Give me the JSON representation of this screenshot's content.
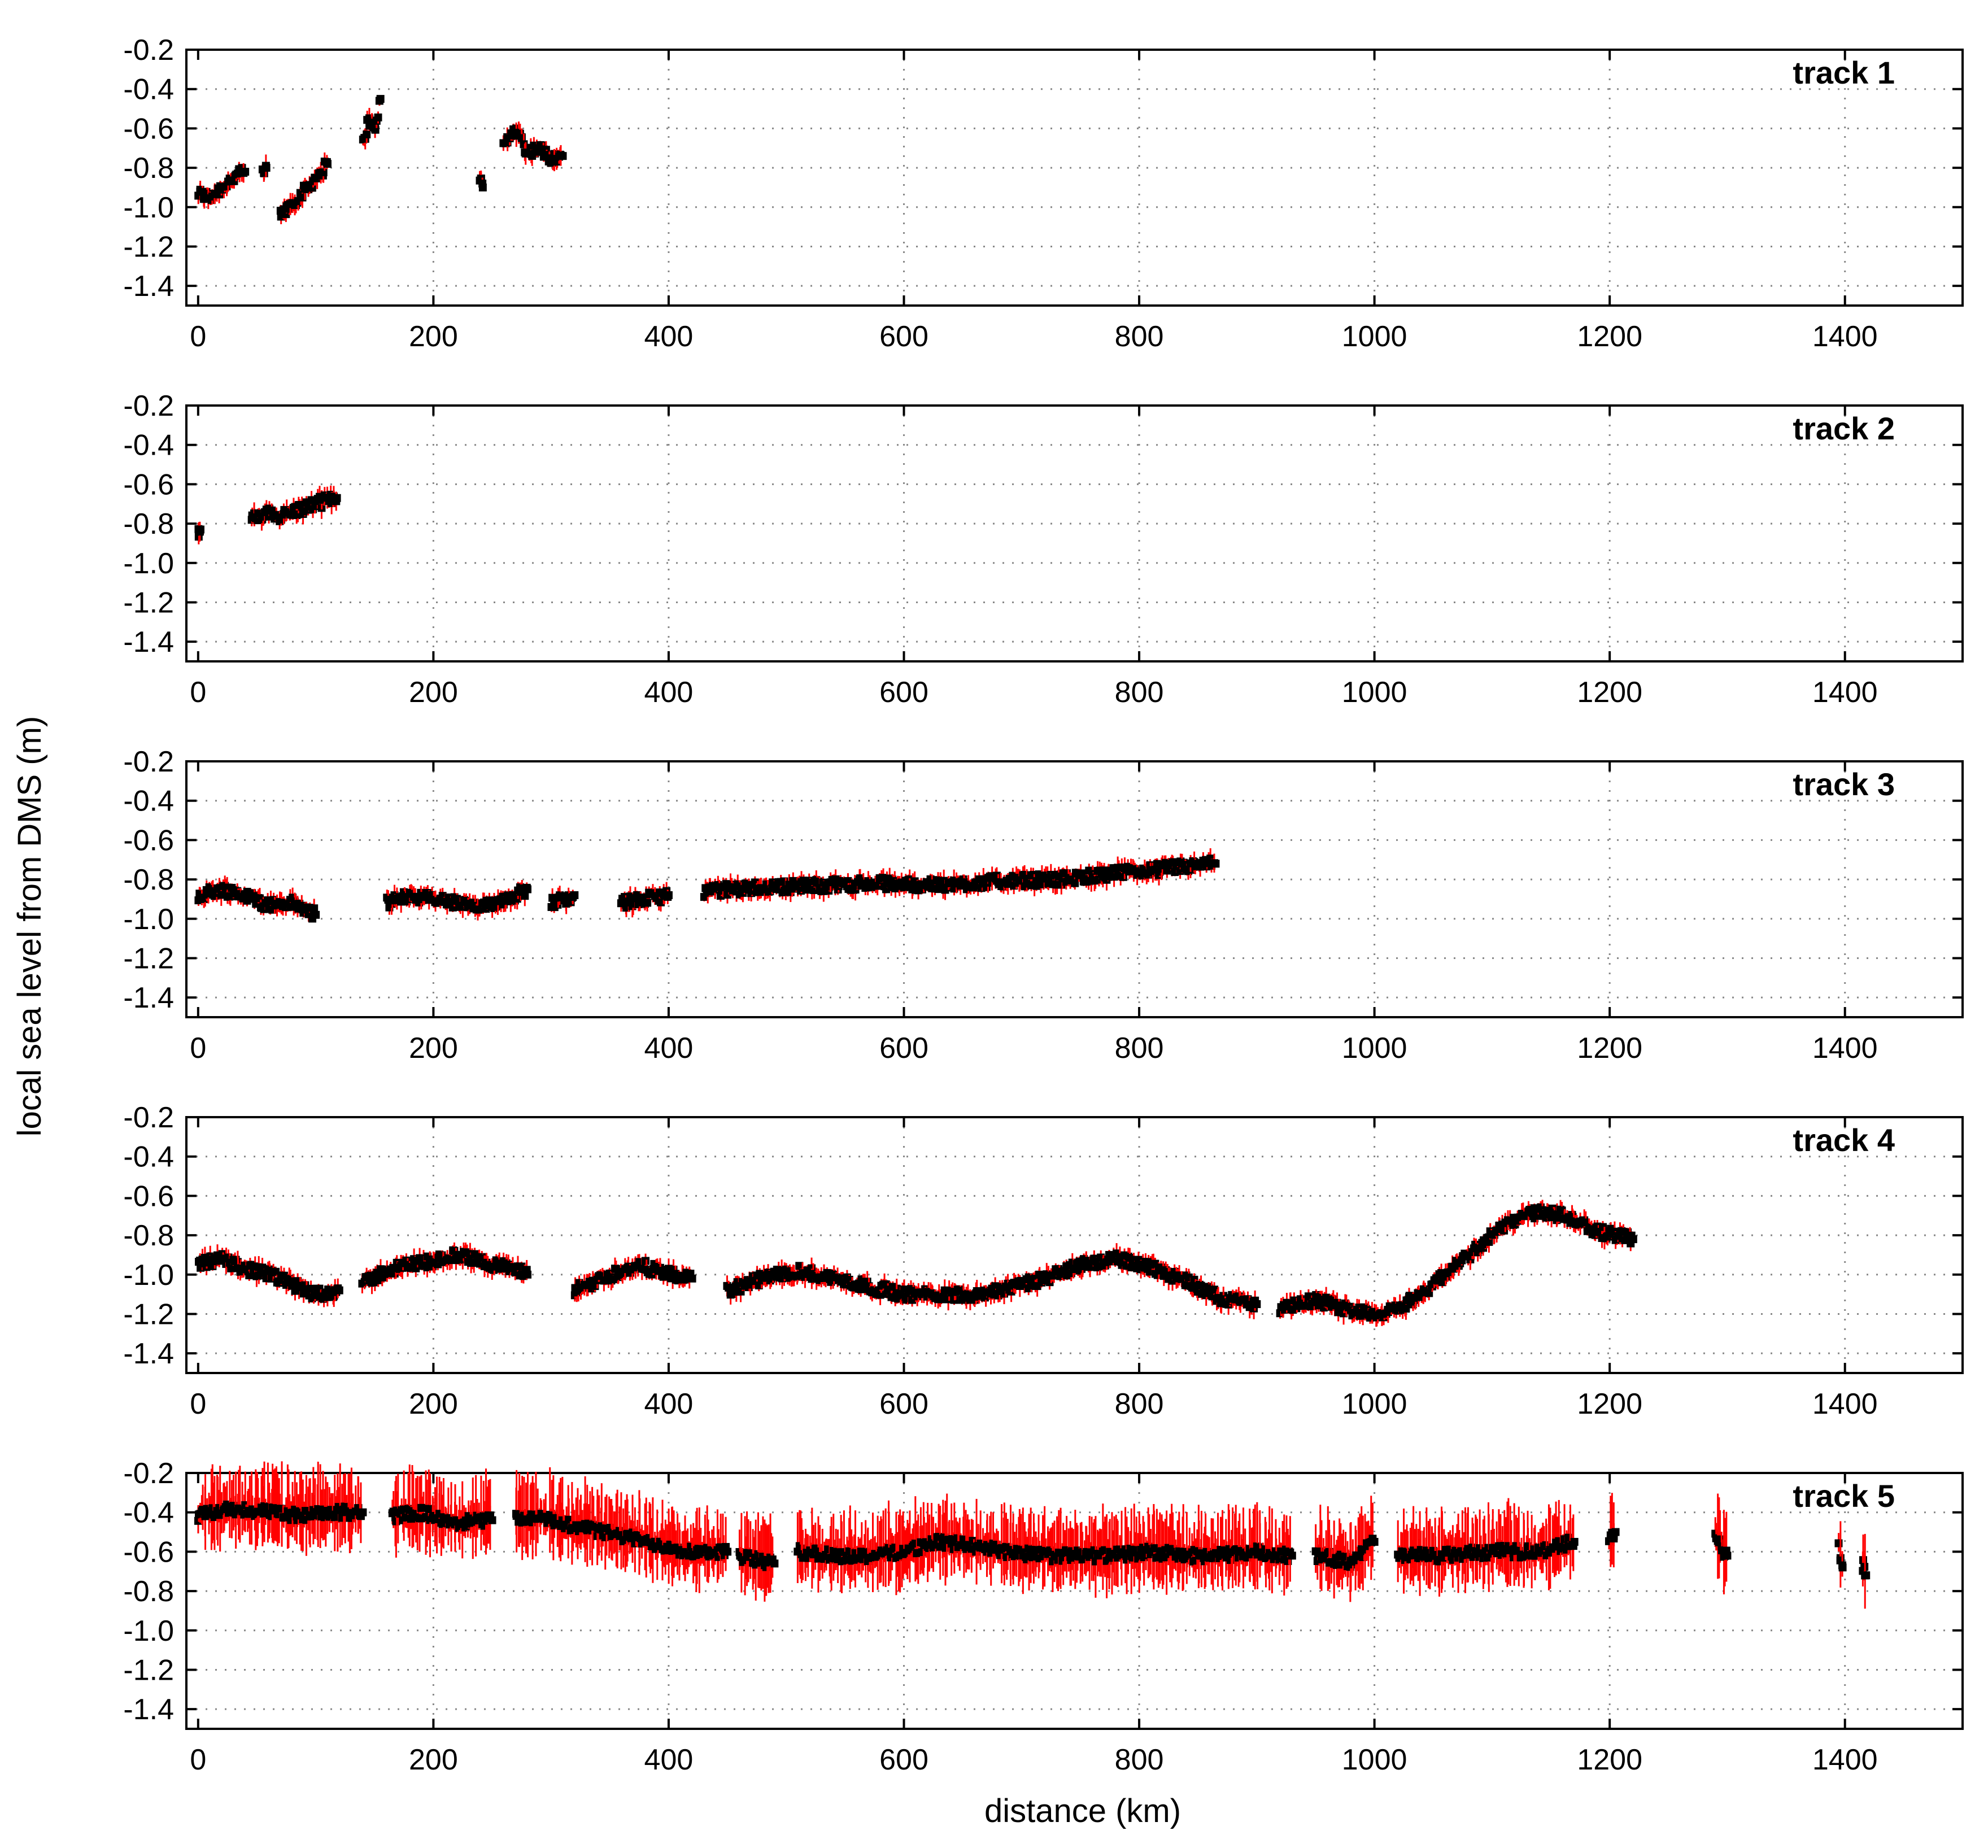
{
  "figure": {
    "ylabel": "local sea level from DMS (m)",
    "xlabel": "distance (km)"
  },
  "chart_data": [
    {
      "type": "scatter",
      "title": "track 1",
      "xlim": [
        -10,
        1500
      ],
      "ylim": [
        -1.5,
        -0.2
      ],
      "xticks": [
        "0",
        "200",
        "400",
        "600",
        "800",
        "1000",
        "1200",
        "1400"
      ],
      "yticks": [
        "-0.2",
        "-0.4",
        "-0.6",
        "-0.8",
        "-1.0",
        "-1.2",
        "-1.4"
      ],
      "grid": true,
      "segments": [
        {
          "x": [
            0,
            10,
            20,
            30,
            40
          ],
          "y": [
            -0.93,
            -0.95,
            -0.9,
            -0.85,
            -0.82
          ]
        },
        {
          "x": [
            55,
            58
          ],
          "y": [
            -0.83,
            -0.8
          ]
        },
        {
          "x": [
            70,
            80,
            90,
            100,
            110
          ],
          "y": [
            -1.04,
            -0.98,
            -0.92,
            -0.85,
            -0.78
          ]
        },
        {
          "x": [
            140,
            145,
            150,
            155
          ],
          "y": [
            -0.68,
            -0.55,
            -0.62,
            -0.45
          ]
        },
        {
          "x": [
            240,
            242
          ],
          "y": [
            -0.85,
            -0.9
          ]
        },
        {
          "x": [
            260,
            270,
            280,
            290,
            300,
            310
          ],
          "y": [
            -0.68,
            -0.6,
            -0.72,
            -0.7,
            -0.75,
            -0.74
          ]
        }
      ]
    },
    {
      "type": "scatter",
      "title": "track 2",
      "xlim": [
        -10,
        1500
      ],
      "ylim": [
        -1.5,
        -0.2
      ],
      "xticks": [
        "0",
        "200",
        "400",
        "600",
        "800",
        "1000",
        "1200",
        "1400"
      ],
      "yticks": [
        "-0.2",
        "-0.4",
        "-0.6",
        "-0.8",
        "-1.0",
        "-1.2",
        "-1.4"
      ],
      "grid": true,
      "segments": [
        {
          "x": [
            0,
            2
          ],
          "y": [
            -0.85,
            -0.83
          ]
        },
        {
          "x": [
            45,
            60,
            70,
            80,
            90,
            100,
            110,
            118
          ],
          "y": [
            -0.78,
            -0.75,
            -0.76,
            -0.74,
            -0.72,
            -0.7,
            -0.68,
            -0.67
          ]
        }
      ]
    },
    {
      "type": "scatter",
      "title": "track 3",
      "xlim": [
        -10,
        1500
      ],
      "ylim": [
        -1.5,
        -0.2
      ],
      "xticks": [
        "0",
        "200",
        "400",
        "600",
        "800",
        "1000",
        "1200",
        "1400"
      ],
      "yticks": [
        "-0.2",
        "-0.4",
        "-0.6",
        "-0.8",
        "-1.0",
        "-1.2",
        "-1.4"
      ],
      "grid": true,
      "segments": [
        {
          "x": [
            0,
            20,
            40,
            60,
            80,
            100
          ],
          "y": [
            -0.88,
            -0.85,
            -0.88,
            -0.93,
            -0.92,
            -0.98
          ]
        },
        {
          "x": [
            160,
            180,
            200,
            220,
            240,
            260,
            280
          ],
          "y": [
            -0.92,
            -0.88,
            -0.9,
            -0.92,
            -0.95,
            -0.9,
            -0.85
          ]
        },
        {
          "x": [
            300,
            320
          ],
          "y": [
            -0.92,
            -0.88
          ]
        },
        {
          "x": [
            360,
            380,
            400
          ],
          "y": [
            -0.92,
            -0.9,
            -0.88
          ]
        },
        {
          "x": [
            430,
            480,
            530,
            580,
            630,
            680,
            730,
            780,
            830,
            865
          ],
          "y": [
            -0.86,
            -0.84,
            -0.83,
            -0.82,
            -0.83,
            -0.81,
            -0.8,
            -0.77,
            -0.74,
            -0.72
          ]
        }
      ]
    },
    {
      "type": "scatter",
      "title": "track 4",
      "xlim": [
        -10,
        1500
      ],
      "ylim": [
        -1.5,
        -0.2
      ],
      "xticks": [
        "0",
        "200",
        "400",
        "600",
        "800",
        "1000",
        "1200",
        "1400"
      ],
      "yticks": [
        "-0.2",
        "-0.4",
        "-0.6",
        "-0.8",
        "-1.0",
        "-1.2",
        "-1.4"
      ],
      "grid": true,
      "segments": [
        {
          "x": [
            0,
            20,
            40,
            60,
            80,
            100,
            120
          ],
          "y": [
            -0.95,
            -0.92,
            -0.97,
            -1.0,
            -1.05,
            -1.1,
            -1.08
          ]
        },
        {
          "x": [
            140,
            160,
            180,
            200,
            220,
            240,
            260,
            280
          ],
          "y": [
            -1.05,
            -0.98,
            -0.95,
            -0.93,
            -0.9,
            -0.93,
            -0.96,
            -1.0
          ]
        },
        {
          "x": [
            320,
            360,
            380,
            400,
            420
          ],
          "y": [
            -1.08,
            -0.98,
            -0.96,
            -1.0,
            -1.02
          ]
        },
        {
          "x": [
            450,
            480,
            510,
            540,
            570,
            600,
            630,
            660,
            690,
            720,
            750,
            780,
            810,
            840,
            870,
            900
          ],
          "y": [
            -1.08,
            -1.02,
            -0.98,
            -1.02,
            -1.06,
            -1.1,
            -1.1,
            -1.1,
            -1.07,
            -1.02,
            -0.95,
            -0.92,
            -0.96,
            -1.03,
            -1.12,
            -1.15
          ]
        },
        {
          "x": [
            920,
            950,
            980,
            1010,
            1040,
            1070,
            1100,
            1130,
            1160,
            1190,
            1220
          ],
          "y": [
            -1.18,
            -1.13,
            -1.18,
            -1.2,
            -1.1,
            -0.95,
            -0.8,
            -0.68,
            -0.7,
            -0.78,
            -0.82
          ]
        }
      ]
    },
    {
      "type": "scatter",
      "title": "track 5",
      "xlim": [
        -10,
        1500
      ],
      "ylim": [
        -1.5,
        -0.2
      ],
      "xticks": [
        "0",
        "200",
        "400",
        "600",
        "800",
        "1000",
        "1200",
        "1400"
      ],
      "yticks": [
        "-0.2",
        "-0.4",
        "-0.6",
        "-0.8",
        "-1.0",
        "-1.2",
        "-1.4"
      ],
      "grid": true,
      "segments": [
        {
          "x": [
            0,
            30,
            60,
            90,
            120,
            140
          ],
          "y": [
            -0.42,
            -0.38,
            -0.4,
            -0.42,
            -0.4,
            -0.4
          ]
        },
        {
          "x": [
            165,
            190,
            220,
            250
          ],
          "y": [
            -0.42,
            -0.4,
            -0.45,
            -0.44
          ]
        },
        {
          "x": [
            270,
            300,
            330,
            360,
            390,
            420,
            450
          ],
          "y": [
            -0.42,
            -0.44,
            -0.48,
            -0.52,
            -0.56,
            -0.6,
            -0.6
          ]
        },
        {
          "x": [
            460,
            490
          ],
          "y": [
            -0.62,
            -0.66
          ]
        },
        {
          "x": [
            510,
            540,
            570,
            600,
            630,
            660,
            690,
            720,
            750,
            780,
            810,
            840,
            870,
            900,
            930
          ],
          "y": [
            -0.6,
            -0.62,
            -0.62,
            -0.6,
            -0.55,
            -0.57,
            -0.6,
            -0.62,
            -0.62,
            -0.62,
            -0.6,
            -0.62,
            -0.62,
            -0.6,
            -0.62
          ]
        },
        {
          "x": [
            950,
            980,
            1000
          ],
          "y": [
            -0.62,
            -0.65,
            -0.55
          ]
        },
        {
          "x": [
            1020,
            1060,
            1100,
            1140,
            1170
          ],
          "y": [
            -0.62,
            -0.62,
            -0.6,
            -0.6,
            -0.55
          ]
        },
        {
          "x": [
            1200,
            1205
          ],
          "y": [
            -0.55,
            -0.5
          ]
        },
        {
          "x": [
            1290,
            1295,
            1300
          ],
          "y": [
            -0.5,
            -0.58,
            -0.62
          ]
        },
        {
          "x": [
            1395,
            1398
          ],
          "y": [
            -0.58,
            -0.68
          ]
        },
        {
          "x": [
            1415,
            1418
          ],
          "y": [
            -0.66,
            -0.72
          ]
        }
      ]
    }
  ]
}
